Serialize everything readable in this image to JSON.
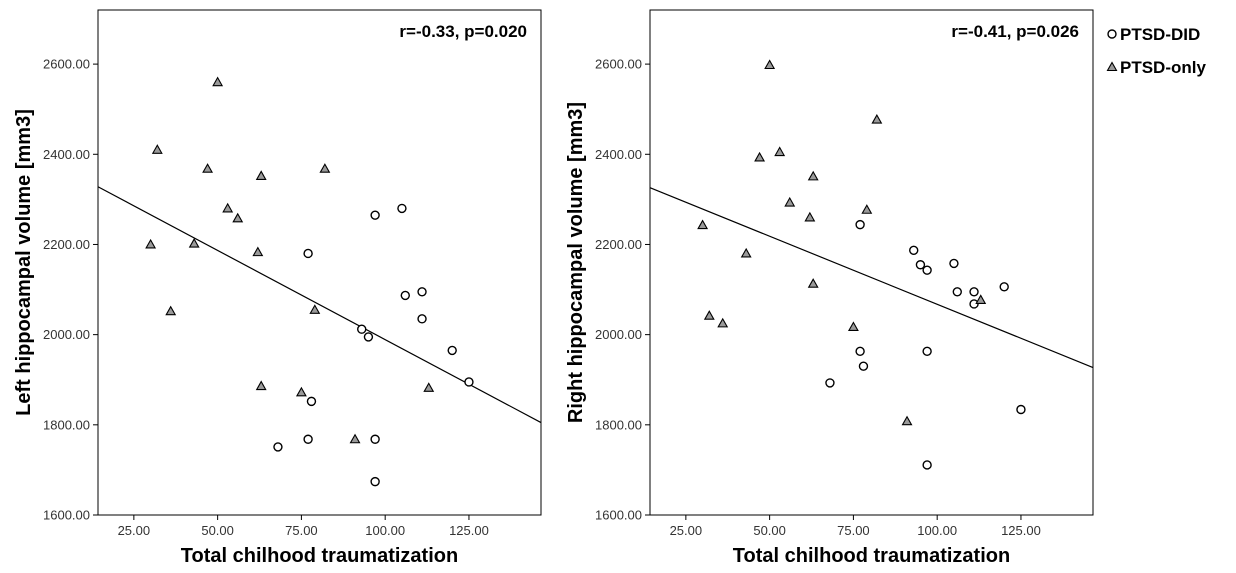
{
  "legend": {
    "entries": [
      {
        "label": "PTSD-DID",
        "marker": "circle"
      },
      {
        "label": "PTSD-only",
        "marker": "triangle"
      }
    ]
  },
  "chart_data": [
    {
      "type": "scatter",
      "annotation": "r=-0.33, p=0.020",
      "xlabel": "Total chilhood traumatization",
      "ylabel": "Left hippocampal volume [mm3]",
      "xlim": [
        14.3,
        146.5
      ],
      "ylim": [
        1600,
        2720
      ],
      "xticks": [
        25,
        50,
        75,
        100,
        125
      ],
      "xtick_labels": [
        "25.00",
        "50.00",
        "75.00",
        "100.00",
        "125.00"
      ],
      "yticks": [
        1600,
        1800,
        2000,
        2200,
        2400,
        2600
      ],
      "ytick_labels": [
        "1600.00",
        "1800.00",
        "2000.00",
        "2200.00",
        "2400.00",
        "2600.00"
      ],
      "grid": false,
      "fit_line": {
        "x": [
          14.3,
          146.5
        ],
        "y": [
          2328,
          1805
        ]
      },
      "series": [
        {
          "name": "PTSD-DID",
          "marker": "circle",
          "points": [
            [
              97,
              2265
            ],
            [
              105,
              2280
            ],
            [
              77,
              2180
            ],
            [
              106,
              2087
            ],
            [
              111,
              2095
            ],
            [
              111,
              2035
            ],
            [
              93,
              2012
            ],
            [
              95,
              1995
            ],
            [
              120,
              1965
            ],
            [
              125,
              1895
            ],
            [
              78,
              1852
            ],
            [
              77,
              1768
            ],
            [
              68,
              1751
            ],
            [
              97,
              1768
            ],
            [
              97,
              1674
            ]
          ]
        },
        {
          "name": "PTSD-only",
          "marker": "triangle",
          "points": [
            [
              50,
              2560
            ],
            [
              32,
              2410
            ],
            [
              47,
              2368
            ],
            [
              82,
              2368
            ],
            [
              63,
              2352
            ],
            [
              53,
              2280
            ],
            [
              56,
              2258
            ],
            [
              30,
              2200
            ],
            [
              43,
              2202
            ],
            [
              62,
              2183
            ],
            [
              36,
              2052
            ],
            [
              79,
              2055
            ],
            [
              63,
              1886
            ],
            [
              75,
              1872
            ],
            [
              113,
              1882
            ],
            [
              91,
              1768
            ]
          ]
        }
      ]
    },
    {
      "type": "scatter",
      "annotation": "r=-0.41, p=0.026",
      "xlabel": "Total chilhood traumatization",
      "ylabel": "Right hippocampal volume [mm3]",
      "xlim": [
        14.3,
        146.5
      ],
      "ylim": [
        1600,
        2720
      ],
      "xticks": [
        25,
        50,
        75,
        100,
        125
      ],
      "xtick_labels": [
        "25.00",
        "50.00",
        "75.00",
        "100.00",
        "125.00"
      ],
      "yticks": [
        1600,
        1800,
        2000,
        2200,
        2400,
        2600
      ],
      "ytick_labels": [
        "1600.00",
        "1800.00",
        "2000.00",
        "2200.00",
        "2400.00",
        "2600.00"
      ],
      "grid": false,
      "fit_line": {
        "x": [
          14.3,
          146.5
        ],
        "y": [
          2326,
          1927
        ]
      },
      "series": [
        {
          "name": "PTSD-DID",
          "marker": "circle",
          "points": [
            [
              77,
              2244
            ],
            [
              93,
              2187
            ],
            [
              95,
              2155
            ],
            [
              97,
              2143
            ],
            [
              105,
              2158
            ],
            [
              106,
              2095
            ],
            [
              111,
              2095
            ],
            [
              111,
              2068
            ],
            [
              120,
              2106
            ],
            [
              77,
              1963
            ],
            [
              78,
              1930
            ],
            [
              68,
              1893
            ],
            [
              97,
              1963
            ],
            [
              125,
              1834
            ],
            [
              97,
              1711
            ]
          ]
        },
        {
          "name": "PTSD-only",
          "marker": "triangle",
          "points": [
            [
              50,
              2598
            ],
            [
              82,
              2477
            ],
            [
              47,
              2393
            ],
            [
              53,
              2405
            ],
            [
              63,
              2351
            ],
            [
              56,
              2293
            ],
            [
              62,
              2260
            ],
            [
              79,
              2277
            ],
            [
              30,
              2243
            ],
            [
              43,
              2180
            ],
            [
              63,
              2113
            ],
            [
              113,
              2077
            ],
            [
              32,
              2042
            ],
            [
              36,
              2025
            ],
            [
              75,
              2017
            ],
            [
              91,
              1808
            ]
          ]
        }
      ]
    }
  ]
}
